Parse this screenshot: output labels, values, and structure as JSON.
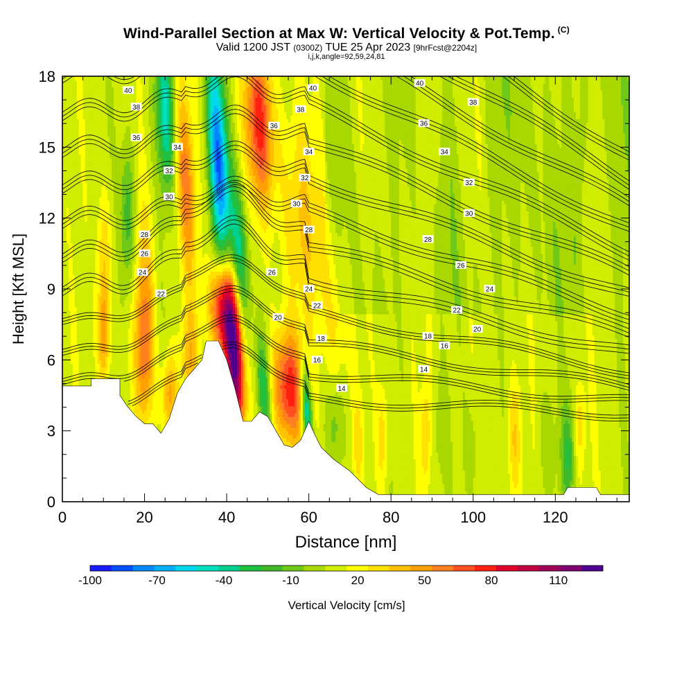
{
  "header": {
    "title": "Wind-Parallel Section at Max W: Vertical Velocity & Pot.Temp.",
    "copyright": "(C)",
    "valid_prefix": "Valid 1200 JST",
    "valid_z": "(0300Z)",
    "valid_date": "TUE 25 Apr 2023",
    "fcst": "[9hrFcst@2204z]",
    "ijk": "i,j,k,angle=92,59,24,81"
  },
  "chart_data": {
    "type": "heatmap",
    "xlabel": "Distance [nm]",
    "ylabel": "Height [Kft MSL]",
    "xlim": [
      0,
      138
    ],
    "ylim": [
      0,
      18
    ],
    "xticks": [
      0,
      20,
      40,
      60,
      80,
      100,
      120
    ],
    "yticks": [
      0,
      3,
      6,
      9,
      12,
      15,
      18
    ],
    "colorbar": {
      "label": "Vertical Velocity [cm/s]",
      "min": -100,
      "max": 130,
      "tick_labels": [
        -100,
        -70,
        -40,
        -10,
        20,
        50,
        80,
        110
      ],
      "colors": [
        "#1a1aff",
        "#0050ff",
        "#0088ff",
        "#00b0ff",
        "#00d8f0",
        "#00e0c0",
        "#00d090",
        "#20c040",
        "#40b828",
        "#70c818",
        "#a8d800",
        "#d0ec00",
        "#ffff00",
        "#ffe000",
        "#ffc000",
        "#ffa000",
        "#ff8020",
        "#ff5020",
        "#ff2010",
        "#e0002a",
        "#c00040",
        "#a00058",
        "#800070",
        "#500090"
      ]
    },
    "terrain": [
      [
        0,
        4.9
      ],
      [
        7,
        4.9
      ],
      [
        7,
        5.2
      ],
      [
        14,
        5.2
      ],
      [
        14,
        4.5
      ],
      [
        16,
        4.0
      ],
      [
        18,
        3.6
      ],
      [
        20,
        3.3
      ],
      [
        22,
        3.3
      ],
      [
        24,
        2.9
      ],
      [
        26,
        3.5
      ],
      [
        28,
        4.6
      ],
      [
        30,
        5.2
      ],
      [
        32,
        5.6
      ],
      [
        34,
        6.0
      ],
      [
        35,
        6.8
      ],
      [
        38,
        6.8
      ],
      [
        40,
        6.0
      ],
      [
        42,
        4.8
      ],
      [
        44,
        3.4
      ],
      [
        46,
        3.4
      ],
      [
        48,
        3.8
      ],
      [
        50,
        3.6
      ],
      [
        52,
        3.0
      ],
      [
        54,
        2.4
      ],
      [
        56,
        2.3
      ],
      [
        58,
        2.6
      ],
      [
        60,
        3.4
      ],
      [
        61,
        3.0
      ],
      [
        63,
        2.3
      ],
      [
        66,
        1.8
      ],
      [
        70,
        1.3
      ],
      [
        74,
        0.6
      ],
      [
        77,
        0.3
      ],
      [
        122,
        0.3
      ],
      [
        123,
        0.6
      ],
      [
        130,
        0.6
      ],
      [
        131,
        0.3
      ],
      [
        138,
        0.3
      ]
    ],
    "contour_levels": [
      14,
      16,
      18,
      20,
      22,
      24,
      26,
      28,
      30,
      32,
      34,
      36,
      38,
      40
    ],
    "contour_labels": [
      {
        "text": "40",
        "x": 16,
        "y": 17.4
      },
      {
        "text": "38",
        "x": 18,
        "y": 16.7
      },
      {
        "text": "36",
        "x": 18,
        "y": 15.4
      },
      {
        "text": "34",
        "x": 28,
        "y": 15.0
      },
      {
        "text": "32",
        "x": 26,
        "y": 14.0
      },
      {
        "text": "30",
        "x": 26,
        "y": 12.9
      },
      {
        "text": "28",
        "x": 20,
        "y": 11.3
      },
      {
        "text": "26",
        "x": 20,
        "y": 10.5
      },
      {
        "text": "24",
        "x": 19.5,
        "y": 9.7
      },
      {
        "text": "22",
        "x": 24,
        "y": 8.8
      },
      {
        "text": "40",
        "x": 61,
        "y": 17.5
      },
      {
        "text": "38",
        "x": 58,
        "y": 16.6
      },
      {
        "text": "36",
        "x": 51.5,
        "y": 15.9
      },
      {
        "text": "34",
        "x": 60,
        "y": 14.8
      },
      {
        "text": "32",
        "x": 59,
        "y": 13.7
      },
      {
        "text": "30",
        "x": 57,
        "y": 12.6
      },
      {
        "text": "28",
        "x": 60,
        "y": 11.5
      },
      {
        "text": "26",
        "x": 51,
        "y": 9.7
      },
      {
        "text": "24",
        "x": 60,
        "y": 9.0
      },
      {
        "text": "22",
        "x": 62,
        "y": 8.3
      },
      {
        "text": "20",
        "x": 52.5,
        "y": 7.8
      },
      {
        "text": "18",
        "x": 63,
        "y": 6.9
      },
      {
        "text": "16",
        "x": 62,
        "y": 6.0
      },
      {
        "text": "14",
        "x": 68,
        "y": 4.8
      },
      {
        "text": "40",
        "x": 87,
        "y": 17.7
      },
      {
        "text": "38",
        "x": 100,
        "y": 16.9
      },
      {
        "text": "36",
        "x": 88,
        "y": 16.0
      },
      {
        "text": "34",
        "x": 93,
        "y": 14.8
      },
      {
        "text": "32",
        "x": 99,
        "y": 13.5
      },
      {
        "text": "30",
        "x": 99,
        "y": 12.2
      },
      {
        "text": "28",
        "x": 89,
        "y": 11.1
      },
      {
        "text": "26",
        "x": 97,
        "y": 10.0
      },
      {
        "text": "24",
        "x": 104,
        "y": 9.0
      },
      {
        "text": "22",
        "x": 96,
        "y": 8.1
      },
      {
        "text": "20",
        "x": 101,
        "y": 7.3
      },
      {
        "text": "18",
        "x": 89,
        "y": 7.0
      },
      {
        "text": "16",
        "x": 93,
        "y": 6.6
      },
      {
        "text": "14",
        "x": 88,
        "y": 5.6
      }
    ],
    "features": [
      {
        "x": 38,
        "y": 14.5,
        "sx": 1.6,
        "sy": 3.2,
        "tilt": -0.28,
        "w": -90
      },
      {
        "x": 43,
        "y": 9.7,
        "sx": 1.7,
        "sy": 2.6,
        "tilt": -0.22,
        "w": -65
      },
      {
        "x": 25,
        "y": 16.5,
        "sx": 1.5,
        "sy": 2.3,
        "tilt": -0.18,
        "w": -55
      },
      {
        "x": 16,
        "y": 12,
        "sx": 1.3,
        "sy": 2.2,
        "tilt": -0.12,
        "w": -35
      },
      {
        "x": 49,
        "y": 4.8,
        "sx": 1.2,
        "sy": 1.6,
        "tilt": -0.3,
        "w": -45
      },
      {
        "x": 59.5,
        "y": 3.9,
        "sx": 0.9,
        "sy": 1.3,
        "tilt": -0.3,
        "w": -70
      },
      {
        "x": 48,
        "y": 16,
        "sx": 2.5,
        "sy": 2.4,
        "tilt": -0.22,
        "w": 65
      },
      {
        "x": 42,
        "y": 6.3,
        "sx": 1.7,
        "sy": 2.4,
        "tilt": -0.15,
        "w": 125
      },
      {
        "x": 39,
        "y": 8.2,
        "sx": 2.1,
        "sy": 1.4,
        "tilt": -0.05,
        "w": 80
      },
      {
        "x": 55,
        "y": 4.8,
        "sx": 2.8,
        "sy": 1.7,
        "tilt": -0.2,
        "w": 70
      },
      {
        "x": 30,
        "y": 13.5,
        "sx": 1.6,
        "sy": 2.8,
        "tilt": -0.22,
        "w": 45
      },
      {
        "x": 10,
        "y": 7.0,
        "sx": 1.0,
        "sy": 1.5,
        "tilt": 0,
        "w": 45
      },
      {
        "x": 20,
        "y": 6.3,
        "sx": 1.6,
        "sy": 2.1,
        "tilt": -0.05,
        "w": 48
      },
      {
        "x": 26,
        "y": 4.5,
        "sx": 1.3,
        "sy": 1.2,
        "tilt": 0,
        "w": 40
      },
      {
        "x": 31,
        "y": 6.0,
        "sx": 1.5,
        "sy": 1.6,
        "tilt": 0,
        "w": 28
      },
      {
        "x": 10,
        "y": 10.5,
        "sx": 1.3,
        "sy": 1.8,
        "tilt": 0,
        "w": 24
      },
      {
        "x": 20,
        "y": 10,
        "sx": 1.8,
        "sy": 2.2,
        "tilt": -0.15,
        "w": 22
      },
      {
        "x": 58,
        "y": 12,
        "sx": 4,
        "sy": 3,
        "tilt": -0.2,
        "w": 22
      },
      {
        "x": 66,
        "y": 8.5,
        "sx": 2.5,
        "sy": 3,
        "tilt": -0.3,
        "w": 20
      },
      {
        "x": 78,
        "y": 2.8,
        "sx": 1.0,
        "sy": 1.7,
        "tilt": 0,
        "w": 22
      },
      {
        "x": 72,
        "y": 2.6,
        "sx": 0.8,
        "sy": 1.2,
        "tilt": 0,
        "w": 18
      },
      {
        "x": 88.5,
        "y": 2.8,
        "sx": 0.8,
        "sy": 1.5,
        "tilt": 0,
        "w": 24
      },
      {
        "x": 110,
        "y": 2.6,
        "sx": 1.2,
        "sy": 1.9,
        "tilt": 0,
        "w": 26
      },
      {
        "x": 126,
        "y": 3.3,
        "sx": 0.9,
        "sy": 1.3,
        "tilt": 0,
        "w": 20
      },
      {
        "x": 66.5,
        "y": 3.4,
        "sx": 1.4,
        "sy": 1.3,
        "tilt": 0,
        "w": -18
      },
      {
        "x": 92,
        "y": 3.0,
        "sx": 1.3,
        "sy": 1.3,
        "tilt": 0,
        "w": -10
      },
      {
        "x": 100,
        "y": 2.3,
        "sx": 1.5,
        "sy": 1.8,
        "tilt": 0,
        "w": -12
      },
      {
        "x": 118,
        "y": 2.4,
        "sx": 1.5,
        "sy": 1.7,
        "tilt": 0,
        "w": -12
      },
      {
        "x": 123,
        "y": 2.0,
        "sx": 1.2,
        "sy": 1.5,
        "tilt": 0,
        "w": -30
      },
      {
        "x": 105,
        "y": 15,
        "sx": 1.5,
        "sy": 3,
        "tilt": 0,
        "w": -10
      },
      {
        "x": 126,
        "y": 14,
        "sx": 1.5,
        "sy": 3,
        "tilt": 0,
        "w": -10
      },
      {
        "x": 90,
        "y": 15,
        "sx": 1.3,
        "sy": 3.5,
        "tilt": 0,
        "w": 12
      }
    ]
  }
}
